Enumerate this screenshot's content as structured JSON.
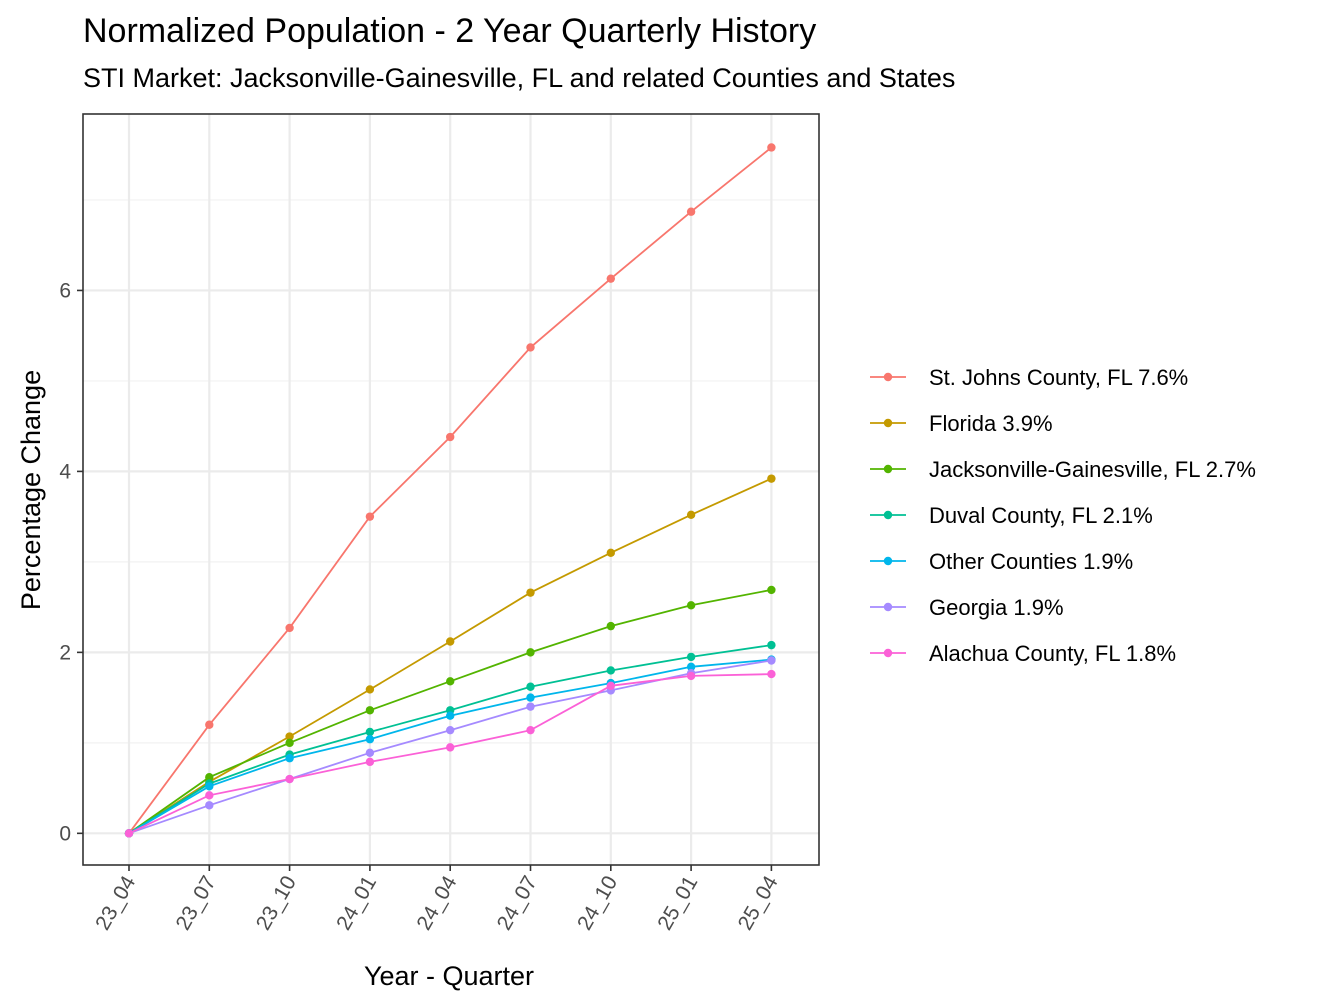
{
  "chart_data": {
    "type": "line",
    "title": "Normalized Population - 2 Year Quarterly History",
    "subtitle": "STI Market: Jacksonville-Gainesville, FL and related Counties and States",
    "xlabel": "Year - Quarter",
    "ylabel": "Percentage Change",
    "categories": [
      "23_04",
      "23_07",
      "23_10",
      "24_01",
      "24_04",
      "24_07",
      "24_10",
      "25_01",
      "25_04"
    ],
    "ylim": [
      -0.35,
      7.95
    ],
    "yticks": [
      0,
      2,
      4,
      6
    ],
    "grid": true,
    "legend_position": "right",
    "series": [
      {
        "name": "St. Johns County, FL 7.6%",
        "color": "#F8766D",
        "values": [
          0,
          1.2,
          2.27,
          3.5,
          4.38,
          5.37,
          6.13,
          6.87,
          7.58
        ]
      },
      {
        "name": "Florida 3.9%",
        "color": "#C49A00",
        "values": [
          0,
          0.57,
          1.07,
          1.59,
          2.12,
          2.66,
          3.1,
          3.52,
          3.92
        ]
      },
      {
        "name": "Jacksonville-Gainesville, FL 2.7%",
        "color": "#53B400",
        "values": [
          0,
          0.62,
          1.0,
          1.36,
          1.68,
          2.0,
          2.29,
          2.52,
          2.69
        ]
      },
      {
        "name": "Duval County, FL 2.1%",
        "color": "#00C094",
        "values": [
          0,
          0.55,
          0.87,
          1.12,
          1.36,
          1.62,
          1.8,
          1.95,
          2.08
        ]
      },
      {
        "name": "Other Counties 1.9%",
        "color": "#00B6EB",
        "values": [
          0,
          0.52,
          0.83,
          1.04,
          1.3,
          1.5,
          1.66,
          1.84,
          1.92
        ]
      },
      {
        "name": "Georgia 1.9%",
        "color": "#A58AFF",
        "values": [
          0,
          0.31,
          0.6,
          0.89,
          1.14,
          1.4,
          1.58,
          1.77,
          1.91
        ]
      },
      {
        "name": "Alachua County, FL 1.8%",
        "color": "#FB61D7",
        "values": [
          0,
          0.42,
          0.6,
          0.79,
          0.95,
          1.14,
          1.63,
          1.74,
          1.76
        ]
      }
    ]
  }
}
